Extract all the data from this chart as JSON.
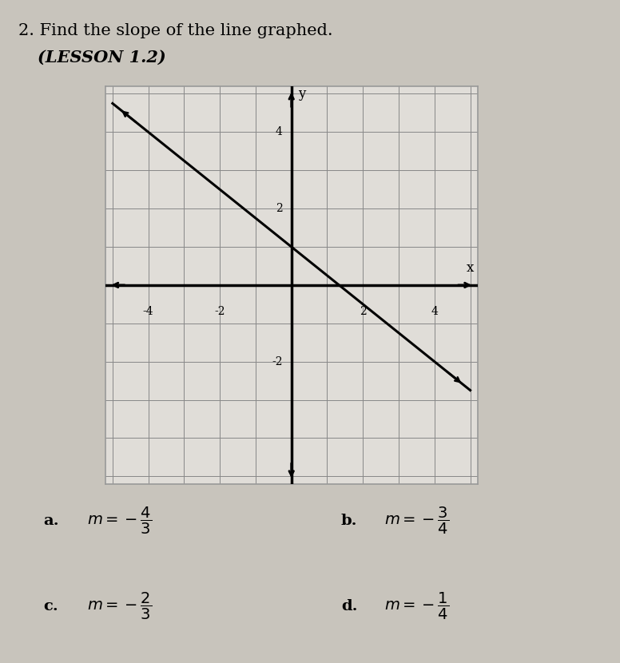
{
  "title_line1": "2. Find the slope of the line graphed.",
  "title_line2": "(LESSON 1.2)",
  "bg_color": "#c8c4bc",
  "graph_bg": "#e0ddd8",
  "slope": -0.75,
  "intercept": 1.0,
  "tick_values": [
    -4,
    -2,
    2,
    4
  ],
  "answer_a_label": "a.",
  "answer_a_expr": "$m = -\\dfrac{4}{3}$",
  "answer_b_label": "b.",
  "answer_b_expr": "$m = -\\dfrac{3}{4}$",
  "answer_c_label": "c.",
  "answer_c_expr": "$m = -\\dfrac{2}{3}$",
  "answer_d_label": "d.",
  "answer_d_expr": "$m = -\\dfrac{1}{4}$"
}
